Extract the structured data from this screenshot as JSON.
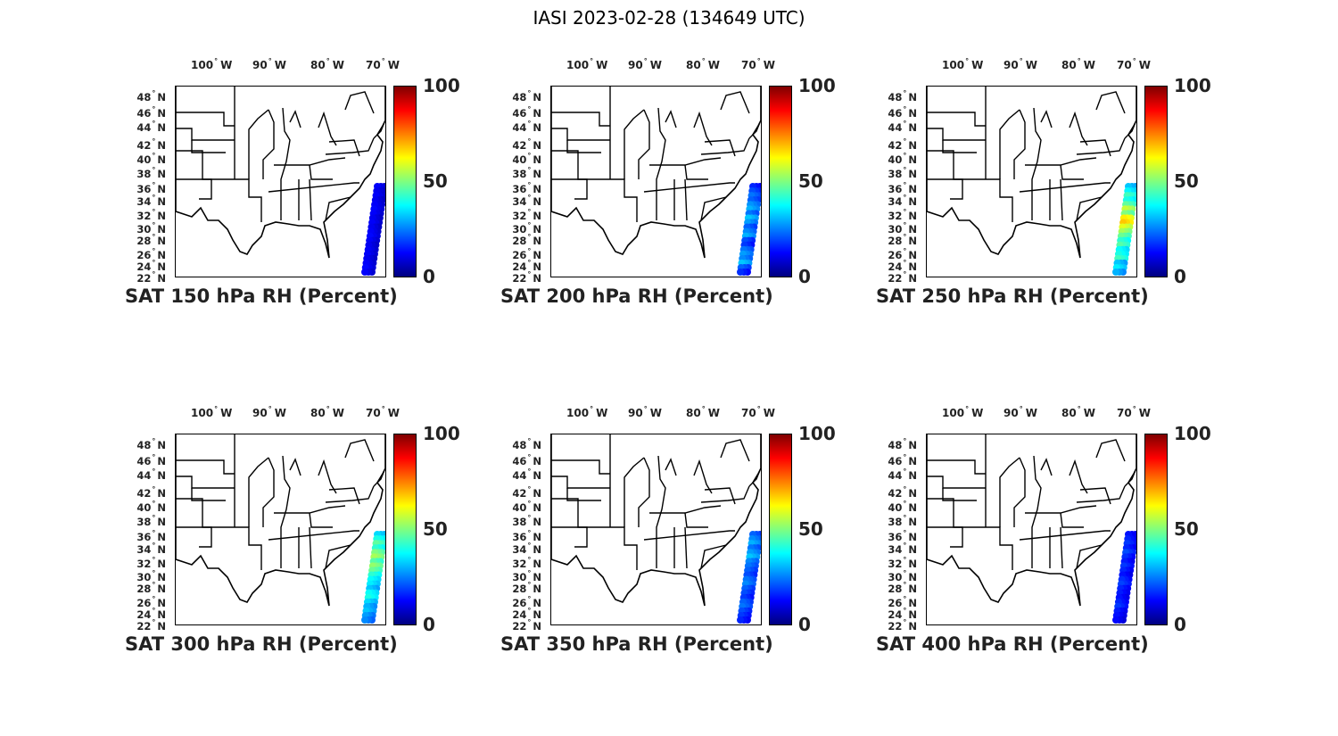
{
  "title": "IASI 2023-02-28 (134649 UTC)",
  "lon_labels": [
    {
      "deg": "100",
      "hem": "W"
    },
    {
      "deg": "90",
      "hem": "W"
    },
    {
      "deg": "80",
      "hem": "W"
    },
    {
      "deg": "70",
      "hem": "W"
    }
  ],
  "lat_labels": [
    "48",
    "46",
    "44",
    "42",
    "40",
    "38",
    "36",
    "34",
    "32",
    "30",
    "28",
    "26",
    "24",
    "22"
  ],
  "lat_hem": "N",
  "colorbar": {
    "max": "100",
    "mid": "50",
    "min": "0",
    "colormap": "jet"
  },
  "panels": [
    {
      "caption": "SAT 150 hPa RH (Percent)",
      "swath_rh": [
        10,
        9,
        10,
        9,
        10,
        11,
        10,
        9,
        10,
        9,
        10,
        11,
        10,
        9,
        10,
        10,
        9,
        10,
        11,
        10
      ]
    },
    {
      "caption": "SAT 200 hPa RH (Percent)",
      "swath_rh": [
        14,
        18,
        22,
        20,
        25,
        28,
        22,
        30,
        26,
        20,
        24,
        28,
        18,
        16,
        22,
        26,
        24,
        30,
        20,
        15
      ]
    },
    {
      "caption": "SAT 250 hPa RH (Percent)",
      "swath_rh": [
        30,
        35,
        42,
        38,
        45,
        55,
        48,
        62,
        66,
        58,
        52,
        46,
        40,
        44,
        36,
        38,
        42,
        30,
        34,
        28
      ]
    },
    {
      "caption": "SAT 300 hPa RH (Percent)",
      "swath_rh": [
        32,
        38,
        45,
        40,
        48,
        52,
        44,
        50,
        46,
        40,
        36,
        34,
        30,
        36,
        38,
        32,
        28,
        30,
        26,
        24
      ]
    },
    {
      "caption": "SAT 350 hPa RH (Percent)",
      "swath_rh": [
        20,
        24,
        28,
        22,
        26,
        30,
        24,
        22,
        20,
        18,
        22,
        24,
        20,
        18,
        16,
        20,
        22,
        18,
        16,
        14
      ]
    },
    {
      "caption": "SAT 400 hPa RH (Percent)",
      "swath_rh": [
        12,
        14,
        16,
        14,
        18,
        15,
        13,
        16,
        14,
        12,
        15,
        17,
        14,
        13,
        12,
        14,
        16,
        13,
        12,
        11
      ]
    }
  ]
}
